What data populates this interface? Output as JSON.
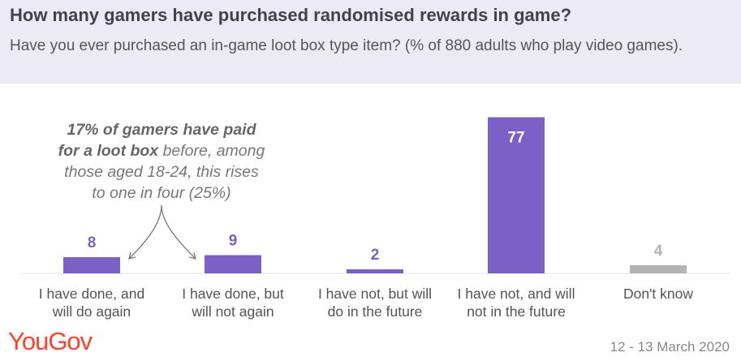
{
  "header": {
    "title": "How many gamers have purchased randomised rewards in game?",
    "subtitle": "Have you ever purchased an in-game loot box type item? (% of 880 adults who play video games)."
  },
  "annotation": {
    "bold_part1": "17% of gamers have paid",
    "bold_part2": "for a loot box",
    "rest_line2": " before, among",
    "line3": "those aged 18-24, this rises",
    "line4": "to one in four (25%)"
  },
  "footer": {
    "brand": "YouGov",
    "date": "12 - 13 March 2020"
  },
  "colors": {
    "purple": "#7b61c6",
    "grey": "#b3b3b3",
    "brand_red": "#ff412c",
    "header_bg": "#ecebf4"
  },
  "chart_data": {
    "type": "bar",
    "categories": [
      [
        "I have done, and",
        "will do again"
      ],
      [
        "I have done, but",
        "will not again"
      ],
      [
        "I have not, but will",
        "do in the future"
      ],
      [
        "I have not, and will",
        "not in the future"
      ],
      [
        "Don't know"
      ]
    ],
    "values": [
      8,
      9,
      2,
      77,
      4
    ],
    "bar_colors": [
      "#7b61c6",
      "#7b61c6",
      "#7b61c6",
      "#7b61c6",
      "#b3b3b3"
    ],
    "value_label_colors": [
      "#7b61c6",
      "#7b61c6",
      "#7b61c6",
      "#ffffff",
      "#b3b3b3"
    ],
    "unit": "%",
    "ylim": [
      0,
      85
    ],
    "grid": false
  }
}
